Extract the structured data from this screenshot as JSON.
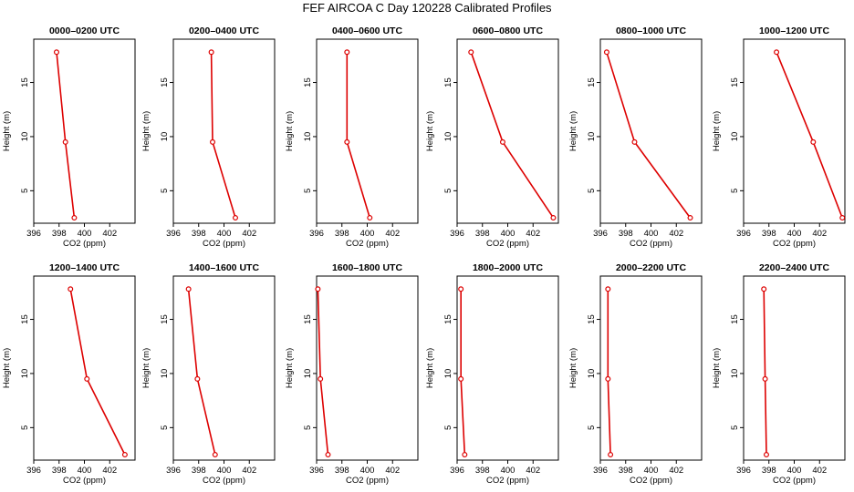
{
  "title": "FEF AIRCOA C  Day 120228  Calibrated Profiles",
  "colors": {
    "profile": "#dd0000",
    "axis": "#000000",
    "background": "#ffffff"
  },
  "chart_data": [
    {
      "type": "line",
      "title": "0000–0200 UTC",
      "xlabel": "CO2 (ppm)",
      "ylabel": "Height (m)",
      "xlim": [
        396,
        404
      ],
      "ylim": [
        2,
        19
      ],
      "xticks": [
        396,
        398,
        400,
        402
      ],
      "yticks": [
        5,
        10,
        15
      ],
      "x": [
        397.8,
        398.5,
        399.2
      ],
      "y": [
        17.8,
        9.5,
        2.5
      ]
    },
    {
      "type": "line",
      "title": "0200–0400 UTC",
      "xlabel": "CO2 (ppm)",
      "ylabel": "Height (m)",
      "xlim": [
        396,
        404
      ],
      "ylim": [
        2,
        19
      ],
      "xticks": [
        396,
        398,
        400,
        402
      ],
      "yticks": [
        5,
        10,
        15
      ],
      "x": [
        399.0,
        399.1,
        400.9
      ],
      "y": [
        17.8,
        9.5,
        2.5
      ]
    },
    {
      "type": "line",
      "title": "0400–0600 UTC",
      "xlabel": "CO2 (ppm)",
      "ylabel": "Height (m)",
      "xlim": [
        396,
        404
      ],
      "ylim": [
        2,
        19
      ],
      "xticks": [
        396,
        398,
        400,
        402
      ],
      "yticks": [
        5,
        10,
        15
      ],
      "x": [
        398.4,
        398.4,
        400.2
      ],
      "y": [
        17.8,
        9.5,
        2.5
      ]
    },
    {
      "type": "line",
      "title": "0600–0800 UTC",
      "xlabel": "CO2 (ppm)",
      "ylabel": "Height (m)",
      "xlim": [
        396,
        404
      ],
      "ylim": [
        2,
        19
      ],
      "xticks": [
        396,
        398,
        400,
        402
      ],
      "yticks": [
        5,
        10,
        15
      ],
      "x": [
        397.1,
        399.6,
        403.6
      ],
      "y": [
        17.8,
        9.5,
        2.5
      ]
    },
    {
      "type": "line",
      "title": "0800–1000 UTC",
      "xlabel": "CO2 (ppm)",
      "ylabel": "Height (m)",
      "xlim": [
        396,
        404
      ],
      "ylim": [
        2,
        19
      ],
      "xticks": [
        396,
        398,
        400,
        402
      ],
      "yticks": [
        5,
        10,
        15
      ],
      "x": [
        396.5,
        398.7,
        403.1
      ],
      "y": [
        17.8,
        9.5,
        2.5
      ]
    },
    {
      "type": "line",
      "title": "1000–1200 UTC",
      "xlabel": "CO2 (ppm)",
      "ylabel": "Height (m)",
      "xlim": [
        396,
        404
      ],
      "ylim": [
        2,
        19
      ],
      "xticks": [
        396,
        398,
        400,
        402
      ],
      "yticks": [
        5,
        10,
        15
      ],
      "x": [
        398.6,
        401.5,
        403.8
      ],
      "y": [
        17.8,
        9.5,
        2.5
      ]
    },
    {
      "type": "line",
      "title": "1200–1400 UTC",
      "xlabel": "CO2 (ppm)",
      "ylabel": "Height (m)",
      "xlim": [
        396,
        404
      ],
      "ylim": [
        2,
        19
      ],
      "xticks": [
        396,
        398,
        400,
        402
      ],
      "yticks": [
        5,
        10,
        15
      ],
      "x": [
        398.9,
        400.2,
        403.2
      ],
      "y": [
        17.8,
        9.5,
        2.5
      ]
    },
    {
      "type": "line",
      "title": "1400–1600 UTC",
      "xlabel": "CO2 (ppm)",
      "ylabel": "Height (m)",
      "xlim": [
        396,
        404
      ],
      "ylim": [
        2,
        19
      ],
      "xticks": [
        396,
        398,
        400,
        402
      ],
      "yticks": [
        5,
        10,
        15
      ],
      "x": [
        397.2,
        397.9,
        399.3
      ],
      "y": [
        17.8,
        9.5,
        2.5
      ]
    },
    {
      "type": "line",
      "title": "1600–1800 UTC",
      "xlabel": "CO2 (ppm)",
      "ylabel": "Height (m)",
      "xlim": [
        396,
        404
      ],
      "ylim": [
        2,
        19
      ],
      "xticks": [
        396,
        398,
        400,
        402
      ],
      "yticks": [
        5,
        10,
        15
      ],
      "x": [
        396.1,
        396.3,
        396.9
      ],
      "y": [
        17.8,
        9.5,
        2.5
      ]
    },
    {
      "type": "line",
      "title": "1800–2000 UTC",
      "xlabel": "CO2 (ppm)",
      "ylabel": "Height (m)",
      "xlim": [
        396,
        404
      ],
      "ylim": [
        2,
        19
      ],
      "xticks": [
        396,
        398,
        400,
        402
      ],
      "yticks": [
        5,
        10,
        15
      ],
      "x": [
        396.3,
        396.3,
        396.6
      ],
      "y": [
        17.8,
        9.5,
        2.5
      ]
    },
    {
      "type": "line",
      "title": "2000–2200 UTC",
      "xlabel": "CO2 (ppm)",
      "ylabel": "Height (m)",
      "xlim": [
        396,
        404
      ],
      "ylim": [
        2,
        19
      ],
      "xticks": [
        396,
        398,
        400,
        402
      ],
      "yticks": [
        5,
        10,
        15
      ],
      "x": [
        396.6,
        396.6,
        396.8
      ],
      "y": [
        17.8,
        9.5,
        2.5
      ]
    },
    {
      "type": "line",
      "title": "2200–2400 UTC",
      "xlabel": "CO2 (ppm)",
      "ylabel": "Height (m)",
      "xlim": [
        396,
        404
      ],
      "ylim": [
        2,
        19
      ],
      "xticks": [
        396,
        398,
        400,
        402
      ],
      "yticks": [
        5,
        10,
        15
      ],
      "x": [
        397.6,
        397.7,
        397.8
      ],
      "y": [
        17.8,
        9.5,
        2.5
      ]
    }
  ]
}
